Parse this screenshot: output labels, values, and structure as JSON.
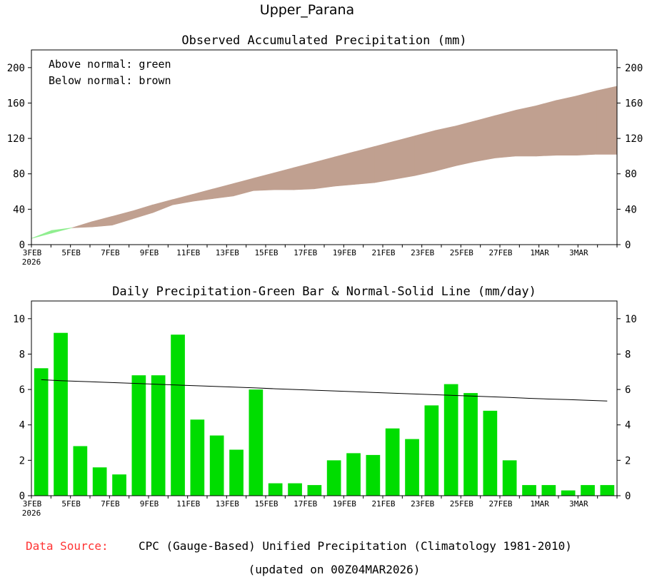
{
  "title": "Upper_Parana",
  "footer": {
    "source_label": "Data Source:",
    "source_text": "CPC (Gauge-Based) Unified Precipitation (Climatology 1981-2010)",
    "updated": "(updated on 00Z04MAR2026)"
  },
  "colors": {
    "above": "#90ee90",
    "below": "#c0a090",
    "bar": "#00dd00",
    "source_label": "#ff3333"
  },
  "chart_data": [
    {
      "type": "area",
      "title": "Observed Accumulated Precipitation (mm)",
      "legend": [
        "Above normal: green",
        "Below normal: brown"
      ],
      "ylim": [
        0,
        220
      ],
      "yticks": [
        0,
        40,
        80,
        120,
        160,
        200
      ],
      "x_tick_labels": [
        "3FEB",
        "5FEB",
        "7FEB",
        "9FEB",
        "11FEB",
        "13FEB",
        "15FEB",
        "17FEB",
        "19FEB",
        "21FEB",
        "23FEB",
        "25FEB",
        "27FEB",
        "1MAR",
        "3MAR"
      ],
      "x_year_label": "2026",
      "days": [
        "3FEB",
        "4FEB",
        "5FEB",
        "6FEB",
        "7FEB",
        "8FEB",
        "9FEB",
        "10FEB",
        "11FEB",
        "12FEB",
        "13FEB",
        "14FEB",
        "15FEB",
        "16FEB",
        "17FEB",
        "18FEB",
        "19FEB",
        "20FEB",
        "21FEB",
        "22FEB",
        "23FEB",
        "24FEB",
        "25FEB",
        "26FEB",
        "27FEB",
        "28FEB",
        "1MAR",
        "2MAR",
        "3MAR",
        "4MAR"
      ],
      "series": [
        {
          "name": "Observed accumulated",
          "values": [
            7,
            16,
            19,
            20,
            22,
            29,
            36,
            45,
            49,
            52,
            55,
            61,
            62,
            62,
            63,
            66,
            68,
            70,
            74,
            78,
            83,
            89,
            94,
            98,
            100,
            100,
            101,
            101,
            102,
            102
          ]
        },
        {
          "name": "Normal accumulated",
          "values": [
            7,
            13,
            19,
            26,
            32,
            38,
            45,
            51,
            57,
            63,
            69,
            75,
            81,
            87,
            93,
            99,
            105,
            111,
            117,
            123,
            129,
            134,
            140,
            146,
            152,
            157,
            163,
            168,
            174,
            179
          ]
        }
      ]
    },
    {
      "type": "bar",
      "title": "Daily Precipitation-Green Bar & Normal-Solid Line (mm/day)",
      "ylim": [
        0,
        11
      ],
      "yticks": [
        0,
        2,
        4,
        6,
        8,
        10
      ],
      "x_tick_labels": [
        "3FEB",
        "5FEB",
        "7FEB",
        "9FEB",
        "11FEB",
        "13FEB",
        "15FEB",
        "17FEB",
        "19FEB",
        "21FEB",
        "23FEB",
        "25FEB",
        "27FEB",
        "1MAR",
        "3MAR"
      ],
      "x_year_label": "2026",
      "days": [
        "3FEB",
        "4FEB",
        "5FEB",
        "6FEB",
        "7FEB",
        "8FEB",
        "9FEB",
        "10FEB",
        "11FEB",
        "12FEB",
        "13FEB",
        "14FEB",
        "15FEB",
        "16FEB",
        "17FEB",
        "18FEB",
        "19FEB",
        "20FEB",
        "21FEB",
        "22FEB",
        "23FEB",
        "24FEB",
        "25FEB",
        "26FEB",
        "27FEB",
        "28FEB",
        "1MAR",
        "2MAR",
        "3MAR",
        "4MAR"
      ],
      "series": [
        {
          "name": "Daily precipitation",
          "values": [
            7.2,
            9.2,
            2.8,
            1.6,
            1.2,
            6.8,
            6.8,
            9.1,
            4.3,
            3.4,
            2.6,
            6.0,
            0.7,
            0.7,
            0.6,
            2.0,
            2.4,
            2.3,
            3.8,
            3.2,
            5.1,
            6.3,
            5.8,
            4.8,
            2.0,
            0.6,
            0.6,
            0.3,
            0.6,
            0.6
          ]
        },
        {
          "name": "Normal",
          "values": [
            6.55,
            6.5,
            6.46,
            6.42,
            6.38,
            6.34,
            6.29,
            6.25,
            6.21,
            6.17,
            6.13,
            6.09,
            6.04,
            6.0,
            5.96,
            5.92,
            5.88,
            5.83,
            5.79,
            5.75,
            5.71,
            5.67,
            5.63,
            5.59,
            5.55,
            5.5,
            5.46,
            5.43,
            5.39,
            5.35
          ]
        }
      ]
    }
  ]
}
